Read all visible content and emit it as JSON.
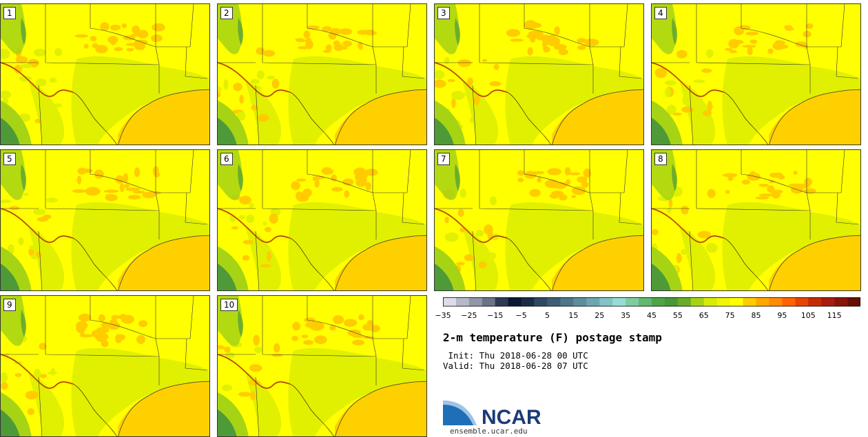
{
  "panels": [
    {
      "label": "1"
    },
    {
      "label": "2"
    },
    {
      "label": "3"
    },
    {
      "label": "4"
    },
    {
      "label": "5"
    },
    {
      "label": "6"
    },
    {
      "label": "7"
    },
    {
      "label": "8"
    },
    {
      "label": "9"
    },
    {
      "label": "10"
    }
  ],
  "colorbar": {
    "colors": [
      "#dcdcec",
      "#b6b9c8",
      "#9096a8",
      "#6a7388",
      "#2e3a52",
      "#0a1830",
      "#1c2c46",
      "#2e4a62",
      "#3e5e74",
      "#4e7688",
      "#5e8e9c",
      "#6ea6b0",
      "#84c2c4",
      "#96dcd4",
      "#7ecc9e",
      "#62b870",
      "#4ea448",
      "#489838",
      "#6aac28",
      "#a6d414",
      "#d6ec08",
      "#f2f404",
      "#ffff00",
      "#ffcc00",
      "#ffa800",
      "#ff8c00",
      "#ff6400",
      "#e64400",
      "#c42c08",
      "#a61e0c",
      "#881608",
      "#661006"
    ],
    "tick_labels": [
      "−35",
      "−25",
      "−15",
      "−5",
      "5",
      "15",
      "25",
      "35",
      "45",
      "55",
      "65",
      "75",
      "85",
      "95",
      "105",
      "115"
    ]
  },
  "title": "2-m temperature (F) postage stamp",
  "init_line": " Init: Thu 2018-06-28 00 UTC",
  "valid_line": "Valid: Thu 2018-06-28 07 UTC",
  "logo": {
    "text": "NCAR",
    "url": "ensemble.ucar.edu",
    "color": "#1a3a7a"
  },
  "map_colors": {
    "land": "#ffff00",
    "warm": "#ffcc00",
    "gulf": "#ffd000",
    "mild": "#e0f000",
    "green": "#a6d414",
    "dark_green": "#4e9a38",
    "hot": "#ff8c00"
  }
}
